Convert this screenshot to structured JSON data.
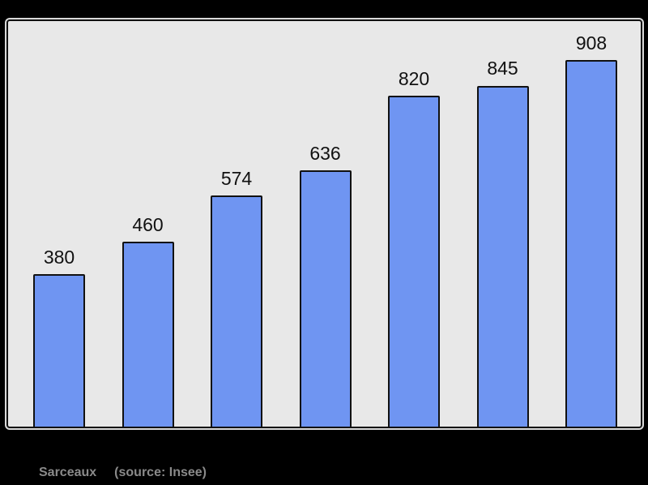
{
  "chart_data": {
    "type": "bar",
    "title": "",
    "xlabel": "",
    "ylabel": "",
    "values": [
      380,
      460,
      574,
      636,
      820,
      845,
      908
    ],
    "value_labels": [
      "380",
      "460",
      "574",
      "636",
      "820",
      "845",
      "908"
    ],
    "ylim": [
      0,
      1000
    ],
    "grid": false,
    "legend": false,
    "colors": {
      "bar_fill": "#6F95F2",
      "bar_stroke": "#111111",
      "value_label_text": "#111111",
      "plot_background": "#E8E8E8",
      "plot_border": "#111111",
      "page_background": "#000000"
    }
  },
  "footer": {
    "place_label": "Sarceaux",
    "source_label": "(source: Insee)",
    "text_color": "#8A8A8A"
  }
}
